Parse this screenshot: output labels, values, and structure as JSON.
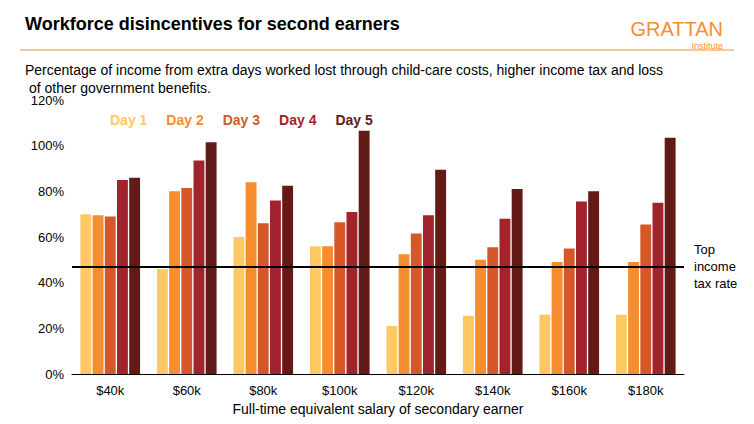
{
  "chart_data": {
    "type": "bar",
    "title": "Workforce disincentives for second earners",
    "subtitle": "Percentage of income from extra days worked lost through child-care costs, higher income tax and loss of other government benefits.",
    "source": [
      "GRATTAN",
      "Institute"
    ],
    "x_label": "Full-time equivalent salary of secondary earner",
    "categories": [
      "$40k",
      "$60k",
      "$80k",
      "$100k",
      "$120k",
      "$140k",
      "$160k",
      "$180k"
    ],
    "series": [
      {
        "name": "Day 1",
        "color": "#fec965",
        "values": [
          70,
          46,
          60,
          56,
          21,
          25.5,
          26,
          26
        ]
      },
      {
        "name": "Day 2",
        "color": "#f68d2e",
        "values": [
          69.5,
          80,
          84,
          56,
          52.5,
          50,
          49,
          49
        ]
      },
      {
        "name": "Day 3",
        "color": "#d4582a",
        "values": [
          69,
          81.5,
          66,
          66.5,
          61.5,
          55.5,
          55,
          65.5
        ]
      },
      {
        "name": "Day 4",
        "color": "#a1232b",
        "values": [
          85,
          93.5,
          76,
          71,
          69.5,
          68,
          75.5,
          75
        ]
      },
      {
        "name": "Day 5",
        "color": "#621a16",
        "values": [
          86,
          101.5,
          82.5,
          106.5,
          89.5,
          81,
          80,
          103.5
        ]
      }
    ],
    "annotations": [
      {
        "text": "Top income tax rate",
        "y": 47
      }
    ],
    "ylim": [
      0,
      120
    ],
    "yticks": [
      {
        "value": 0,
        "label": "0%"
      },
      {
        "value": 20,
        "label": "20%"
      },
      {
        "value": 40,
        "label": "40%"
      },
      {
        "value": 60,
        "label": "60%"
      },
      {
        "value": 80,
        "label": "80%"
      },
      {
        "value": 100,
        "label": "100%"
      },
      {
        "value": 120,
        "label": "120%"
      }
    ],
    "grid": false,
    "legend": "upper left"
  }
}
